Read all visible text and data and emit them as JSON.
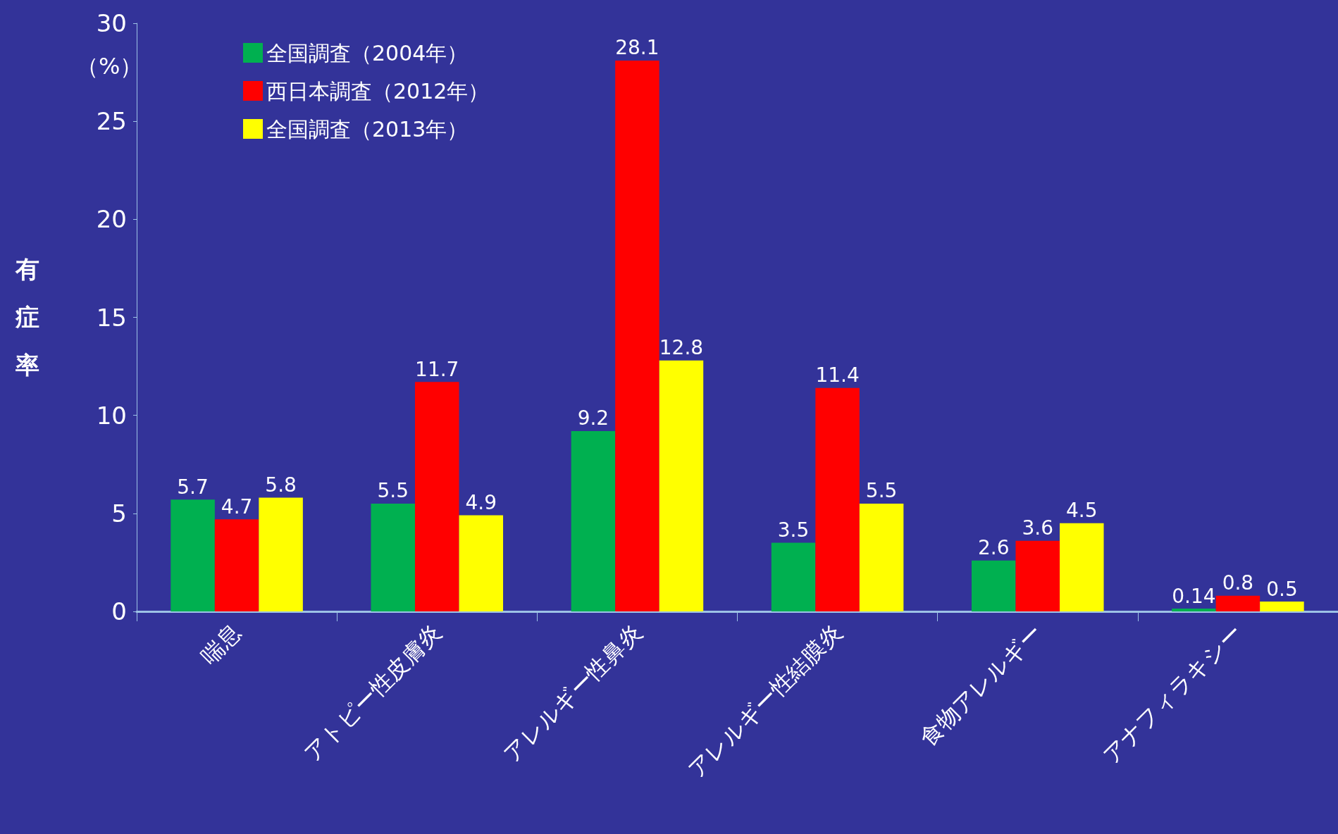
{
  "chart_data": {
    "type": "bar",
    "ylabel": "有症率",
    "annotations": [
      "（%）"
    ],
    "categories": [
      "喘息",
      "アトピー性皮膚炎",
      "アレルギー性鼻炎",
      "アレルギー性結膜炎",
      "食物アレルギー",
      "アナフィラキシー"
    ],
    "series": [
      {
        "name": "全国調査（2004年）",
        "color": "#00b050",
        "values": [
          5.7,
          5.5,
          9.2,
          3.5,
          2.6,
          0.14
        ]
      },
      {
        "name": "西日本調査（2012年）",
        "color": "#ff0000",
        "values": [
          4.7,
          11.7,
          28.1,
          11.4,
          3.6,
          0.8
        ]
      },
      {
        "name": "全国調査（2013年）",
        "color": "#ffff00",
        "values": [
          5.8,
          4.9,
          12.8,
          5.5,
          4.5,
          0.5
        ]
      }
    ],
    "ylim": [
      0,
      30
    ],
    "yticks": [
      0,
      5,
      10,
      15,
      20,
      25,
      30
    ],
    "grid": false,
    "legend": "top left",
    "data_labels": true
  }
}
